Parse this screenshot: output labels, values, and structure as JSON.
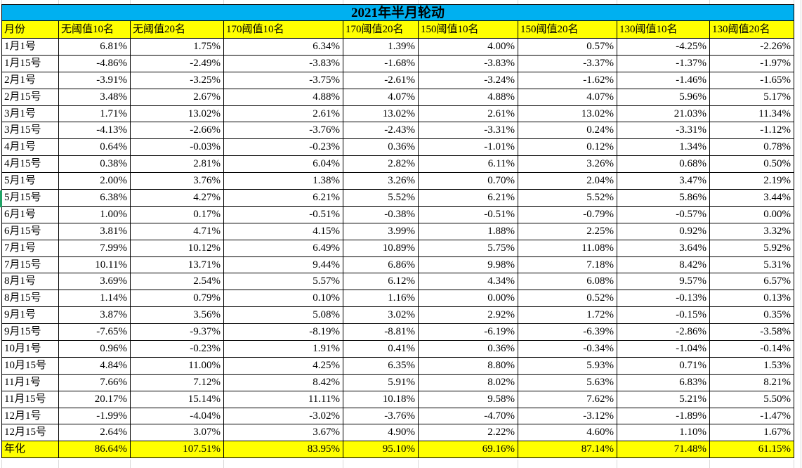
{
  "title": "2021年半月轮动",
  "columns": [
    "月份",
    "无阈值10名",
    "无阈值20名",
    "170阈值10名",
    "170阈值20名",
    "150阈值10名",
    "150阈值20名",
    "130阈值10名",
    "130阈值20名"
  ],
  "rows": [
    [
      "1月1号",
      "6.81%",
      "1.75%",
      "6.34%",
      "1.39%",
      "4.00%",
      "0.57%",
      "-4.25%",
      "-2.26%"
    ],
    [
      "1月15号",
      "-4.86%",
      "-2.49%",
      "-3.83%",
      "-1.68%",
      "-3.83%",
      "-3.37%",
      "-1.37%",
      "-1.97%"
    ],
    [
      "2月1号",
      "-3.91%",
      "-3.25%",
      "-3.75%",
      "-2.61%",
      "-3.24%",
      "-1.62%",
      "-1.46%",
      "-1.65%"
    ],
    [
      "2月15号",
      "3.48%",
      "2.67%",
      "4.88%",
      "4.07%",
      "4.88%",
      "4.07%",
      "5.96%",
      "5.17%"
    ],
    [
      "3月1号",
      "1.71%",
      "13.02%",
      "2.61%",
      "13.02%",
      "2.61%",
      "13.02%",
      "21.03%",
      "11.34%"
    ],
    [
      "3月15号",
      "-4.13%",
      "-2.66%",
      "-3.76%",
      "-2.43%",
      "-3.31%",
      "0.24%",
      "-3.31%",
      "-1.12%"
    ],
    [
      "4月1号",
      "0.64%",
      "-0.03%",
      "-0.23%",
      "0.36%",
      "-1.01%",
      "0.12%",
      "1.34%",
      "0.78%"
    ],
    [
      "4月15号",
      "0.38%",
      "2.81%",
      "6.04%",
      "2.82%",
      "6.11%",
      "3.26%",
      "0.68%",
      "0.50%"
    ],
    [
      "5月1号",
      "2.00%",
      "3.76%",
      "1.38%",
      "3.26%",
      "0.70%",
      "2.04%",
      "3.47%",
      "2.19%"
    ],
    [
      "5月15号",
      "6.38%",
      "4.27%",
      "6.21%",
      "5.52%",
      "6.21%",
      "5.52%",
      "5.86%",
      "3.44%"
    ],
    [
      "6月1号",
      "1.00%",
      "0.17%",
      "-0.51%",
      "-0.38%",
      "-0.51%",
      "-0.79%",
      "-0.57%",
      "0.00%"
    ],
    [
      "6月15号",
      "3.81%",
      "4.71%",
      "4.15%",
      "3.99%",
      "1.88%",
      "2.25%",
      "0.92%",
      "3.32%"
    ],
    [
      "7月1号",
      "7.99%",
      "10.12%",
      "6.49%",
      "10.89%",
      "5.75%",
      "11.08%",
      "3.64%",
      "5.92%"
    ],
    [
      "7月15号",
      "10.11%",
      "13.71%",
      "9.44%",
      "6.86%",
      "9.98%",
      "7.18%",
      "8.42%",
      "5.31%"
    ],
    [
      "8月1号",
      "3.69%",
      "2.54%",
      "5.57%",
      "6.12%",
      "4.34%",
      "6.08%",
      "9.57%",
      "6.57%"
    ],
    [
      "8月15号",
      "1.14%",
      "0.79%",
      "0.10%",
      "1.16%",
      "0.00%",
      "0.52%",
      "-0.13%",
      "0.13%"
    ],
    [
      "9月1号",
      "3.87%",
      "3.56%",
      "5.08%",
      "3.02%",
      "2.92%",
      "1.72%",
      "-0.15%",
      "0.35%"
    ],
    [
      "9月15号",
      "-7.65%",
      "-9.37%",
      "-8.19%",
      "-8.81%",
      "-6.19%",
      "-6.39%",
      "-2.86%",
      "-3.58%"
    ],
    [
      "10月1号",
      "0.96%",
      "-0.23%",
      "1.91%",
      "0.41%",
      "0.36%",
      "-0.34%",
      "-1.04%",
      "-0.14%"
    ],
    [
      "10月15号",
      "4.84%",
      "11.00%",
      "4.25%",
      "6.35%",
      "8.80%",
      "5.93%",
      "0.71%",
      "1.53%"
    ],
    [
      "11月1号",
      "7.66%",
      "7.12%",
      "8.42%",
      "5.91%",
      "8.02%",
      "5.63%",
      "6.83%",
      "8.21%"
    ],
    [
      "11月15号",
      "20.17%",
      "15.14%",
      "11.11%",
      "10.18%",
      "9.58%",
      "7.62%",
      "5.21%",
      "5.50%"
    ],
    [
      "12月1号",
      "-1.99%",
      "-4.04%",
      "-3.02%",
      "-3.76%",
      "-4.70%",
      "-3.12%",
      "-1.89%",
      "-1.47%"
    ],
    [
      "12月15号",
      "2.64%",
      "3.07%",
      "3.67%",
      "4.90%",
      "2.22%",
      "4.60%",
      "1.10%",
      "1.67%"
    ]
  ],
  "annualized": [
    "年化",
    "86.64%",
    "107.51%",
    "83.95%",
    "95.10%",
    "69.16%",
    "87.14%",
    "71.48%",
    "61.15%"
  ],
  "selection": {
    "marked_row": "5月15号"
  },
  "colors": {
    "title_bar": "#00B0F0",
    "header_bg": "#FFFF00",
    "annualized_bg": "#FFFF00",
    "marker_green": "#21A366"
  }
}
